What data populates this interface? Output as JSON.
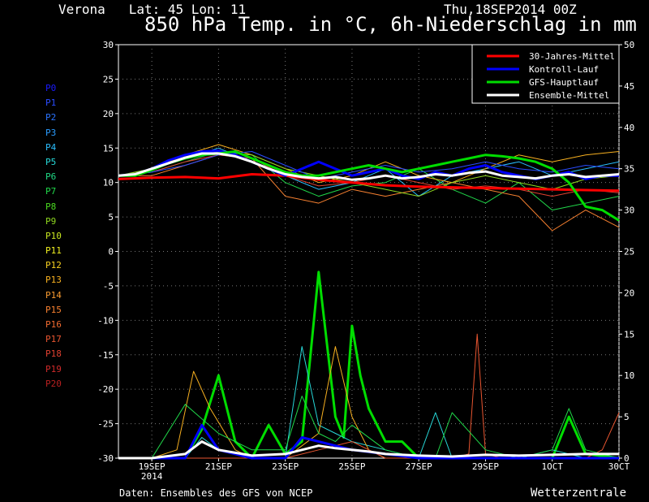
{
  "header": {
    "location": "Verona   Lat: 45 Lon: 11",
    "run_date": "Thu,18SEP2014 00Z",
    "title": "850 hPa Temp. in °C, 6h-Niederschlag in mm"
  },
  "members": [
    {
      "label": "P0",
      "color": "#1a1aff"
    },
    {
      "label": "P1",
      "color": "#2a4cff"
    },
    {
      "label": "P2",
      "color": "#2a73ff"
    },
    {
      "label": "P3",
      "color": "#2a9cff"
    },
    {
      "label": "P4",
      "color": "#2abfff"
    },
    {
      "label": "P5",
      "color": "#27d9d9"
    },
    {
      "label": "P6",
      "color": "#20d985"
    },
    {
      "label": "P7",
      "color": "#20d94a"
    },
    {
      "label": "P8",
      "color": "#4ad920"
    },
    {
      "label": "P9",
      "color": "#8fd920"
    },
    {
      "label": "P10",
      "color": "#c8e620"
    },
    {
      "label": "P11",
      "color": "#f0f020"
    },
    {
      "label": "P12",
      "color": "#f7d020"
    },
    {
      "label": "P13",
      "color": "#f7b020"
    },
    {
      "label": "P14",
      "color": "#f79a30"
    },
    {
      "label": "P15",
      "color": "#f78030"
    },
    {
      "label": "P16",
      "color": "#f06a30"
    },
    {
      "label": "P17",
      "color": "#e85530"
    },
    {
      "label": "P18",
      "color": "#e04030"
    },
    {
      "label": "P19",
      "color": "#d02a2a"
    },
    {
      "label": "P20",
      "color": "#b82020"
    }
  ],
  "footer": {
    "source": "Daten: Ensembles des GFS von NCEP",
    "brand": "Wetterzentrale"
  },
  "chart_data": {
    "type": "line",
    "x_unit": "date (6-hourly steps from 18SEP2014 00Z)",
    "x_ticks": [
      "19SEP\n2014",
      "21SEP",
      "23SEP",
      "25SEP",
      "27SEP",
      "29SEP",
      "1OCT",
      "30CT"
    ],
    "left_axis": {
      "label": "850 hPa Temp. (°C)",
      "ylim": [
        -30,
        30
      ],
      "ticks": [
        30,
        25,
        20,
        15,
        10,
        5,
        0,
        -5,
        -10,
        -15,
        -20,
        -25,
        -30
      ]
    },
    "right_axis": {
      "label": "6h-Niederschlag (mm)",
      "ylim": [
        0,
        50
      ],
      "ticks": [
        50,
        45,
        40,
        35,
        30,
        25,
        20,
        15,
        10,
        5,
        0
      ]
    },
    "grid": true,
    "legend_position": "top-right",
    "legend": [
      {
        "name": "30-Jahres-Mittel",
        "color": "#ff0000"
      },
      {
        "name": "Kontroll-Lauf",
        "color": "#0000ff"
      },
      {
        "name": "GFS-Hauptlauf",
        "color": "#00dd00"
      },
      {
        "name": "Ensemble-Mittel",
        "color": "#ffffff"
      }
    ],
    "temperature_series": [
      {
        "name": "30-Jahres-Mittel",
        "color": "#ff0000",
        "width": 3,
        "x": [
          18.0,
          19.0,
          20.0,
          21.0,
          22.0,
          23.0,
          24.0,
          25.0,
          26.0,
          27.0,
          28.0,
          29.0,
          30.0,
          31.0,
          32.0,
          33.0
        ],
        "values": [
          10.5,
          10.7,
          10.8,
          10.6,
          11.2,
          11.0,
          10.4,
          10.0,
          9.6,
          9.4,
          9.3,
          9.2,
          9.1,
          9.0,
          8.9,
          8.8
        ]
      },
      {
        "name": "Kontroll-Lauf",
        "color": "#0000ff",
        "width": 3,
        "x": [
          18.0,
          18.5,
          19.0,
          19.5,
          20.0,
          20.5,
          21.0,
          21.5,
          22.0,
          22.5,
          23.0,
          23.5,
          24.0,
          24.5,
          25.0,
          25.5,
          26.0,
          26.5,
          27.0,
          27.5,
          28.0,
          28.5,
          29.0,
          29.5,
          30.0,
          30.5,
          31.0,
          31.5,
          32.0,
          32.5,
          33.0
        ],
        "values": [
          11.0,
          11.2,
          12.0,
          13.2,
          14.0,
          14.5,
          14.6,
          14.0,
          13.0,
          12.0,
          11.0,
          12.0,
          13.0,
          12.0,
          11.0,
          11.5,
          12.0,
          11.0,
          10.5,
          11.5,
          11.0,
          12.0,
          12.5,
          11.5,
          11.0,
          10.5,
          11.0,
          11.5,
          10.5,
          11.0,
          11.0
        ]
      },
      {
        "name": "GFS-Hauptlauf",
        "color": "#00dd00",
        "width": 3,
        "x": [
          18.0,
          18.5,
          19.0,
          19.5,
          20.0,
          20.5,
          21.0,
          21.5,
          22.0,
          22.5,
          23.0,
          23.5,
          24.0,
          24.5,
          25.0,
          25.5,
          26.0,
          26.5,
          27.0,
          27.5,
          28.0,
          28.5,
          29.0,
          29.5,
          30.0,
          30.5,
          31.0,
          31.5,
          32.0,
          32.5,
          33.0
        ],
        "values": [
          11.0,
          11.0,
          11.8,
          12.8,
          13.5,
          14.0,
          14.2,
          14.5,
          13.5,
          12.5,
          11.5,
          11.0,
          11.0,
          11.5,
          12.0,
          12.5,
          12.0,
          11.5,
          12.0,
          12.5,
          13.0,
          13.5,
          14.0,
          13.8,
          13.5,
          13.0,
          12.0,
          10.0,
          6.5,
          6.0,
          4.5
        ]
      },
      {
        "name": "Ensemble-Mittel",
        "color": "#ffffff",
        "width": 3,
        "x": [
          18.0,
          18.5,
          19.0,
          19.5,
          20.0,
          20.5,
          21.0,
          21.5,
          22.0,
          22.5,
          23.0,
          23.5,
          24.0,
          24.5,
          25.0,
          25.5,
          26.0,
          26.5,
          27.0,
          27.5,
          28.0,
          28.5,
          29.0,
          29.5,
          30.0,
          30.5,
          31.0,
          31.5,
          32.0,
          32.5,
          33.0
        ],
        "values": [
          11.0,
          11.2,
          12.0,
          12.8,
          13.6,
          14.2,
          14.2,
          13.8,
          13.0,
          12.0,
          11.2,
          10.8,
          10.6,
          10.8,
          10.4,
          10.6,
          11.0,
          10.6,
          10.8,
          11.2,
          11.0,
          11.4,
          11.6,
          11.0,
          10.8,
          10.6,
          11.0,
          11.2,
          10.8,
          11.0,
          11.2
        ]
      },
      {
        "name": "P4",
        "color": "#2abfff",
        "width": 1,
        "x": [
          18.0,
          19.0,
          20.0,
          21.0,
          22.0,
          23.0,
          24.0,
          25.0,
          26.0,
          27.0,
          28.0,
          29.0,
          30.0,
          31.0,
          32.0,
          33.0
        ],
        "values": [
          11.0,
          12.0,
          13.5,
          15.0,
          13.0,
          11.0,
          9.0,
          10.0,
          12.0,
          8.0,
          11.0,
          12.0,
          13.0,
          11.0,
          12.0,
          13.0
        ]
      },
      {
        "name": "P7",
        "color": "#20d94a",
        "width": 1,
        "x": [
          18.0,
          19.0,
          20.0,
          21.0,
          22.0,
          23.0,
          24.0,
          25.0,
          26.0,
          27.0,
          28.0,
          29.0,
          30.0,
          31.0,
          32.0,
          33.0
        ],
        "values": [
          11.0,
          11.5,
          13.0,
          14.5,
          14.0,
          10.0,
          8.0,
          9.5,
          10.0,
          12.0,
          9.0,
          7.0,
          10.0,
          6.0,
          7.0,
          8.0
        ]
      },
      {
        "name": "P13",
        "color": "#f7b020",
        "width": 1,
        "x": [
          18.0,
          19.0,
          20.0,
          21.0,
          22.0,
          23.0,
          24.0,
          25.0,
          26.0,
          27.0,
          28.0,
          29.0,
          30.0,
          31.0,
          32.0,
          33.0
        ],
        "values": [
          11.0,
          12.0,
          14.0,
          15.5,
          14.0,
          12.0,
          10.0,
          11.0,
          13.0,
          11.0,
          10.0,
          12.0,
          14.0,
          13.0,
          14.0,
          14.5
        ]
      },
      {
        "name": "P15",
        "color": "#f78030",
        "width": 1,
        "x": [
          18.0,
          19.0,
          20.0,
          21.0,
          22.0,
          23.0,
          24.0,
          25.0,
          26.0,
          27.0,
          28.0,
          29.0,
          30.0,
          31.0,
          32.0,
          33.0
        ],
        "values": [
          11.0,
          11.0,
          12.5,
          14.0,
          13.5,
          8.0,
          7.0,
          9.0,
          8.0,
          9.0,
          10.0,
          9.0,
          8.0,
          3.0,
          6.0,
          3.5
        ]
      },
      {
        "name": "P18",
        "color": "#e04030",
        "width": 1,
        "x": [
          18.0,
          19.0,
          20.0,
          21.0,
          22.0,
          23.0,
          24.0,
          25.0,
          26.0,
          27.0,
          28.0,
          29.0,
          30.0,
          31.0,
          32.0,
          33.0
        ],
        "values": [
          11.0,
          11.5,
          13.0,
          14.0,
          13.5,
          11.0,
          9.5,
          10.0,
          11.0,
          10.0,
          9.0,
          9.5,
          9.0,
          8.0,
          9.0,
          8.5
        ]
      },
      {
        "name": "P9",
        "color": "#8fd920",
        "width": 1,
        "x": [
          18.0,
          19.0,
          20.0,
          21.0,
          22.0,
          23.0,
          24.0,
          25.0,
          26.0,
          27.0,
          28.0,
          29.0,
          30.0,
          31.0,
          32.0,
          33.0
        ],
        "values": [
          11.0,
          12.0,
          13.5,
          14.5,
          14.0,
          12.0,
          11.0,
          10.0,
          9.0,
          8.0,
          10.0,
          11.0,
          10.0,
          9.0,
          10.5,
          11.0
        ]
      },
      {
        "name": "P1",
        "color": "#2a4cff",
        "width": 1,
        "x": [
          18.0,
          19.0,
          20.0,
          21.0,
          22.0,
          23.0,
          24.0,
          25.0,
          26.0,
          27.0,
          28.0,
          29.0,
          30.0,
          31.0,
          32.0,
          33.0
        ],
        "values": [
          11.0,
          11.5,
          12.5,
          14.0,
          14.5,
          12.5,
          10.5,
          11.5,
          12.5,
          11.5,
          12.0,
          13.0,
          12.0,
          11.5,
          12.5,
          12.0
        ]
      }
    ],
    "precipitation_series": [
      {
        "name": "GFS-Hauptlauf",
        "color": "#00dd00",
        "width": 3,
        "x": [
          18.0,
          19.0,
          20.0,
          20.5,
          21.0,
          21.5,
          22.0,
          22.5,
          23.0,
          23.5,
          24.0,
          24.5,
          24.75,
          25.0,
          25.25,
          25.5,
          26.0,
          26.5,
          27.0,
          28.0,
          29.0,
          30.0,
          31.0,
          31.5,
          32.0,
          33.0
        ],
        "values": [
          0,
          0,
          0,
          3.5,
          10.0,
          2.0,
          0,
          4.0,
          0.5,
          2.0,
          22.5,
          5.0,
          2.5,
          16.0,
          10.0,
          6.0,
          2.0,
          2.0,
          0,
          0,
          0,
          0,
          0,
          5.0,
          0.5,
          0
        ]
      },
      {
        "name": "P5",
        "color": "#27d9d9",
        "width": 1,
        "x": [
          18.0,
          19.0,
          20.0,
          20.5,
          21.0,
          22.0,
          23.0,
          23.5,
          24.0,
          24.5,
          25.0,
          26.0,
          27.0,
          27.5,
          28.0,
          29.0,
          30.0,
          31.0,
          32.0,
          33.0
        ],
        "values": [
          0,
          0,
          0,
          2.5,
          1.0,
          0,
          0,
          13.5,
          4.0,
          3.0,
          2.0,
          1.0,
          0,
          5.5,
          0,
          0,
          0,
          1.0,
          0,
          0
        ]
      },
      {
        "name": "P13",
        "color": "#f7b020",
        "width": 1,
        "x": [
          18.0,
          19.0,
          19.75,
          20.25,
          20.75,
          21.5,
          22.0,
          23.0,
          24.0,
          24.5,
          25.0,
          25.5,
          26.0,
          27.0,
          28.0,
          29.0,
          30.0,
          31.0,
          32.0,
          33.0
        ],
        "values": [
          0,
          0,
          1.0,
          10.5,
          6.0,
          1.0,
          0,
          0,
          3.0,
          13.5,
          5.0,
          1.0,
          0,
          0,
          0,
          0,
          0,
          0,
          0,
          0
        ]
      },
      {
        "name": "P17",
        "color": "#e85530",
        "width": 1,
        "x": [
          18.0,
          19.0,
          20.0,
          21.0,
          22.0,
          23.0,
          24.0,
          25.0,
          26.0,
          27.0,
          28.0,
          28.5,
          28.75,
          29.0,
          29.5,
          30.0,
          31.0,
          32.0,
          32.5,
          33.0
        ],
        "values": [
          0,
          0,
          0,
          0,
          0,
          0,
          1.0,
          2.0,
          0,
          0,
          0,
          0.5,
          15.0,
          0.5,
          0,
          0,
          0,
          0,
          1.0,
          5.5
        ]
      },
      {
        "name": "P7",
        "color": "#20d94a",
        "width": 1,
        "x": [
          18.0,
          19.0,
          20.0,
          21.0,
          22.0,
          23.0,
          23.5,
          24.0,
          24.5,
          25.0,
          26.0,
          27.0,
          27.5,
          28.0,
          29.0,
          30.0,
          31.0,
          31.5,
          32.0,
          33.0
        ],
        "values": [
          0,
          0,
          6.5,
          3.0,
          1.0,
          1.0,
          7.5,
          3.0,
          2.0,
          4.0,
          1.0,
          0,
          0,
          5.5,
          1.0,
          0,
          1.0,
          6.0,
          1.0,
          0
        ]
      },
      {
        "name": "Kontroll-Lauf",
        "color": "#0000ff",
        "width": 3,
        "x": [
          18.0,
          19.0,
          20.0,
          20.5,
          21.0,
          22.0,
          23.0,
          23.5,
          24.0,
          24.5,
          25.0,
          26.0,
          27.0,
          28.0,
          29.0,
          30.0,
          31.0,
          32.0,
          33.0
        ],
        "values": [
          0,
          0,
          0,
          4.0,
          1.0,
          0,
          0,
          2.5,
          2.0,
          1.5,
          1.0,
          0.5,
          0,
          0,
          0,
          0,
          0,
          0,
          0
        ]
      },
      {
        "name": "Ensemble-Mittel",
        "color": "#ffffff",
        "width": 3,
        "x": [
          18.0,
          19.0,
          20.0,
          20.5,
          21.0,
          22.0,
          23.0,
          24.0,
          24.5,
          25.0,
          25.5,
          26.0,
          27.0,
          28.0,
          29.0,
          30.0,
          31.0,
          32.0,
          33.0
        ],
        "values": [
          0,
          0,
          0.5,
          2.0,
          1.0,
          0.3,
          0.5,
          1.5,
          1.2,
          1.0,
          0.8,
          0.5,
          0.3,
          0.2,
          0.4,
          0.3,
          0.4,
          0.5,
          0.5
        ]
      }
    ]
  }
}
